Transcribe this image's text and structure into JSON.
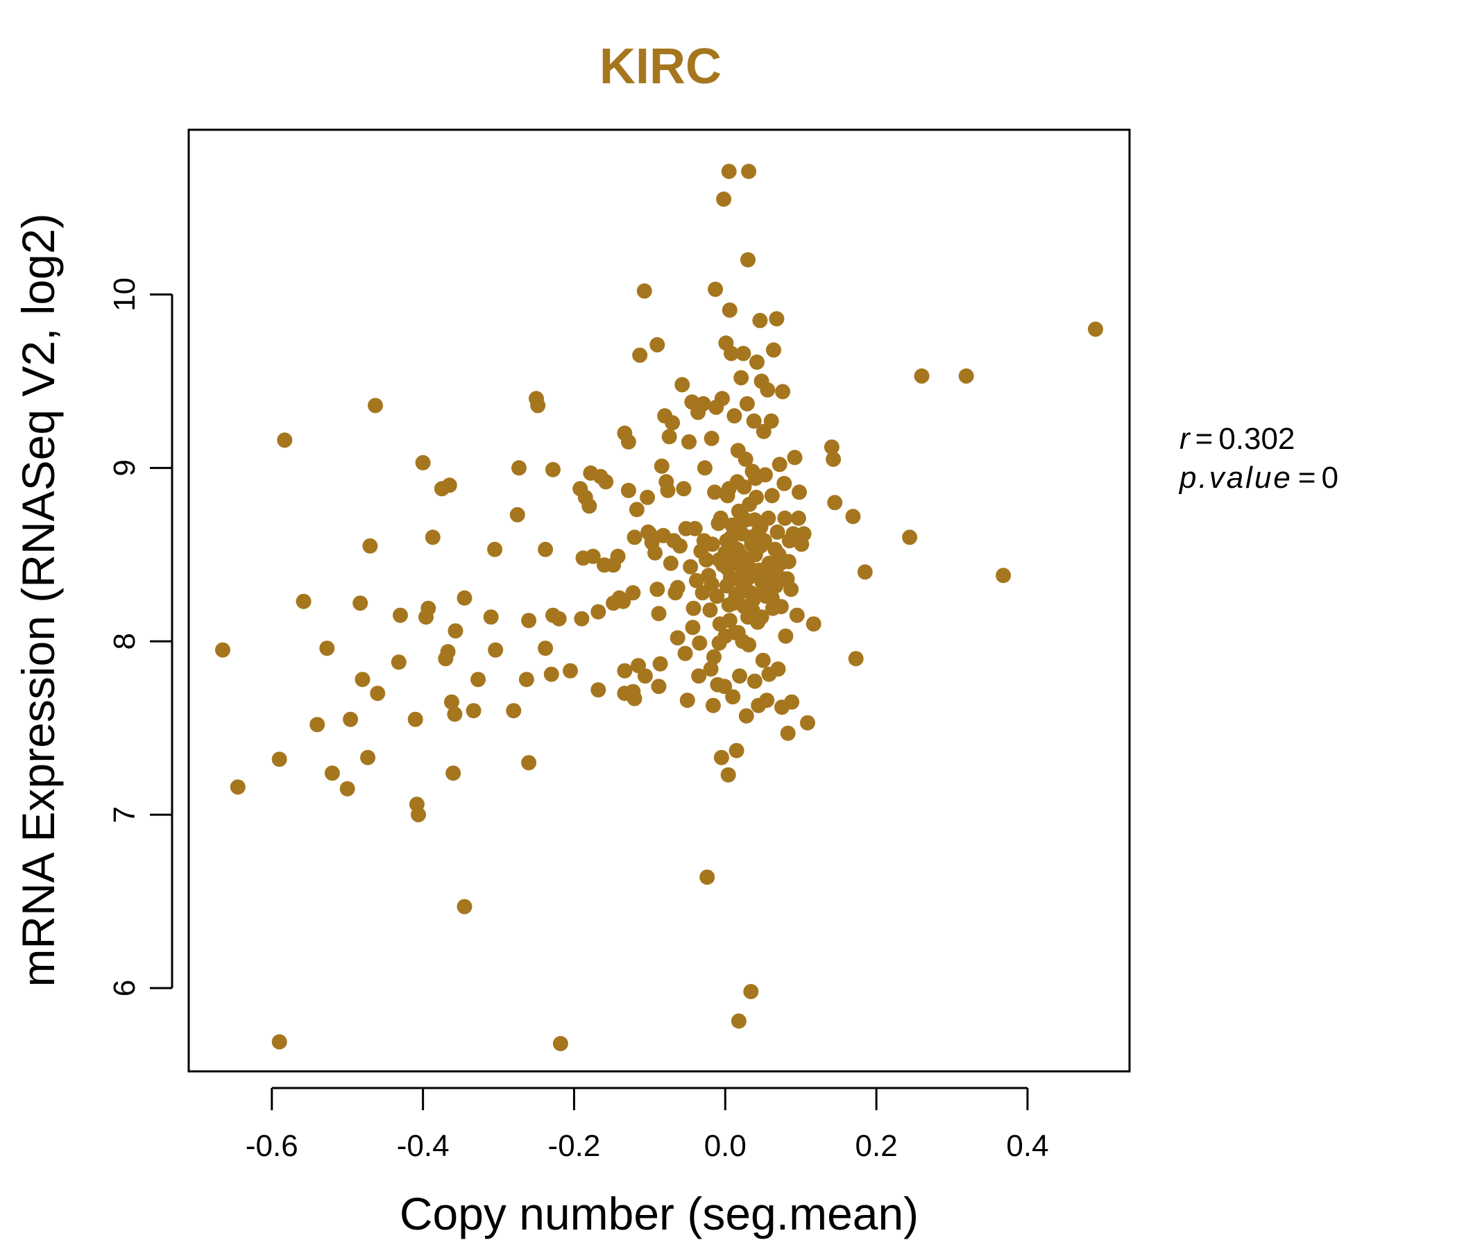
{
  "chart_data": {
    "type": "scatter",
    "title": "KIRC",
    "xlabel": "Copy number (seg.mean)",
    "ylabel": "mRNA Expression (RNASeq V2, log2)",
    "xlim": [
      -0.71,
      0.535
    ],
    "ylim": [
      5.52,
      10.95
    ],
    "x_ticks": [
      -0.6,
      -0.4,
      -0.2,
      0.0,
      0.2,
      0.4
    ],
    "x_tick_labels": [
      "-0.6",
      "-0.4",
      "-0.2",
      "0.0",
      "0.2",
      "0.4"
    ],
    "y_ticks": [
      6,
      7,
      8,
      9,
      10
    ],
    "y_tick_labels": [
      "6",
      "7",
      "8",
      "9",
      "10"
    ],
    "point_color": "#A5761E",
    "title_color": "#A5761E",
    "annotation": {
      "r_label": "r",
      "r_value": "0.302",
      "p_label": "p.value",
      "p_value": "0"
    },
    "series": [
      {
        "points": [
          [
            -0.665,
            7.95
          ],
          [
            -0.645,
            7.16
          ],
          [
            -0.59,
            7.32
          ],
          [
            -0.59,
            5.69
          ],
          [
            -0.583,
            9.16
          ],
          [
            -0.558,
            8.23
          ],
          [
            -0.54,
            7.52
          ],
          [
            -0.527,
            7.96
          ],
          [
            -0.52,
            7.24
          ],
          [
            -0.5,
            7.15
          ],
          [
            -0.496,
            7.55
          ],
          [
            -0.483,
            8.22
          ],
          [
            -0.48,
            7.78
          ],
          [
            -0.473,
            7.33
          ],
          [
            -0.47,
            8.55
          ],
          [
            -0.463,
            9.36
          ],
          [
            -0.46,
            7.7
          ],
          [
            -0.432,
            7.88
          ],
          [
            -0.43,
            8.15
          ],
          [
            -0.41,
            7.55
          ],
          [
            -0.408,
            7.06
          ],
          [
            -0.406,
            7.0
          ],
          [
            -0.4,
            9.03
          ],
          [
            -0.396,
            8.14
          ],
          [
            -0.393,
            8.19
          ],
          [
            -0.387,
            8.6
          ],
          [
            -0.375,
            8.88
          ],
          [
            -0.37,
            7.9
          ],
          [
            -0.367,
            7.94
          ],
          [
            -0.365,
            8.9
          ],
          [
            -0.362,
            7.65
          ],
          [
            -0.36,
            7.24
          ],
          [
            -0.358,
            7.58
          ],
          [
            -0.357,
            8.06
          ],
          [
            -0.345,
            6.47
          ],
          [
            -0.345,
            8.25
          ],
          [
            -0.333,
            7.6
          ],
          [
            -0.327,
            7.78
          ],
          [
            -0.31,
            8.14
          ],
          [
            -0.305,
            8.53
          ],
          [
            -0.304,
            7.95
          ],
          [
            -0.28,
            7.6
          ],
          [
            -0.275,
            8.73
          ],
          [
            -0.273,
            9.0
          ],
          [
            -0.263,
            7.78
          ],
          [
            -0.26,
            7.3
          ],
          [
            -0.26,
            8.12
          ],
          [
            -0.25,
            9.4
          ],
          [
            -0.248,
            9.36
          ],
          [
            -0.238,
            8.53
          ],
          [
            -0.238,
            7.96
          ],
          [
            -0.23,
            7.81
          ],
          [
            -0.228,
            8.99
          ],
          [
            -0.228,
            8.15
          ],
          [
            -0.22,
            8.13
          ],
          [
            -0.218,
            5.68
          ],
          [
            -0.205,
            7.83
          ],
          [
            -0.192,
            8.88
          ],
          [
            -0.19,
            8.13
          ],
          [
            -0.188,
            8.48
          ],
          [
            -0.185,
            8.83
          ],
          [
            -0.18,
            8.78
          ],
          [
            -0.178,
            8.97
          ],
          [
            -0.175,
            8.49
          ],
          [
            -0.168,
            8.17
          ],
          [
            -0.168,
            7.72
          ],
          [
            -0.165,
            8.95
          ],
          [
            -0.16,
            8.44
          ],
          [
            -0.158,
            8.92
          ],
          [
            -0.148,
            8.44
          ],
          [
            -0.148,
            8.22
          ],
          [
            -0.142,
            8.49
          ],
          [
            -0.14,
            8.25
          ],
          [
            -0.135,
            8.23
          ],
          [
            -0.133,
            9.2
          ],
          [
            -0.133,
            7.7
          ],
          [
            -0.133,
            7.83
          ],
          [
            -0.128,
            9.15
          ],
          [
            -0.128,
            8.87
          ],
          [
            -0.122,
            8.28
          ],
          [
            -0.122,
            7.71
          ],
          [
            -0.12,
            7.67
          ],
          [
            -0.12,
            8.6
          ],
          [
            -0.117,
            8.76
          ],
          [
            -0.115,
            7.86
          ],
          [
            -0.113,
            9.65
          ],
          [
            -0.107,
            10.02
          ],
          [
            -0.106,
            7.8
          ],
          [
            -0.103,
            8.83
          ],
          [
            -0.102,
            8.63
          ],
          [
            -0.1,
            8.62
          ],
          [
            -0.097,
            8.57
          ],
          [
            -0.093,
            8.51
          ],
          [
            -0.09,
            9.71
          ],
          [
            -0.09,
            8.3
          ],
          [
            -0.088,
            8.16
          ],
          [
            -0.088,
            7.74
          ],
          [
            -0.086,
            7.87
          ],
          [
            -0.084,
            9.01
          ],
          [
            -0.082,
            8.61
          ],
          [
            -0.08,
            9.3
          ],
          [
            -0.078,
            8.92
          ],
          [
            -0.076,
            8.87
          ],
          [
            -0.074,
            9.18
          ],
          [
            -0.072,
            8.45
          ],
          [
            -0.07,
            9.26
          ],
          [
            -0.068,
            8.58
          ],
          [
            -0.066,
            8.28
          ],
          [
            -0.063,
            8.02
          ],
          [
            -0.063,
            8.31
          ],
          [
            -0.06,
            8.55
          ],
          [
            -0.057,
            9.48
          ],
          [
            -0.055,
            8.88
          ],
          [
            -0.053,
            7.93
          ],
          [
            -0.052,
            8.65
          ],
          [
            -0.05,
            7.66
          ],
          [
            -0.048,
            9.15
          ],
          [
            -0.046,
            8.43
          ],
          [
            -0.044,
            9.38
          ],
          [
            -0.043,
            8.08
          ],
          [
            -0.042,
            8.19
          ],
          [
            -0.04,
            8.65
          ],
          [
            -0.038,
            8.35
          ],
          [
            -0.036,
            9.32
          ],
          [
            -0.035,
            7.8
          ],
          [
            -0.034,
            7.99
          ],
          [
            -0.032,
            8.52
          ],
          [
            -0.03,
            8.28
          ],
          [
            -0.029,
            9.37
          ],
          [
            -0.027,
            9.0
          ],
          [
            -0.025,
            8.47
          ],
          [
            -0.024,
            6.64
          ],
          [
            -0.022,
            8.38
          ],
          [
            -0.02,
            8.18
          ],
          [
            -0.019,
            7.84
          ],
          [
            -0.018,
            9.17
          ],
          [
            -0.017,
            8.56
          ],
          [
            -0.016,
            7.63
          ],
          [
            -0.015,
            7.91
          ],
          [
            -0.014,
            8.86
          ],
          [
            -0.013,
            10.03
          ],
          [
            -0.012,
            9.35
          ],
          [
            -0.011,
            8.26
          ],
          [
            -0.01,
            7.75
          ],
          [
            -0.009,
            8.68
          ],
          [
            -0.008,
            7.99
          ],
          [
            -0.007,
            8.1
          ],
          [
            -0.006,
            8.71
          ],
          [
            -0.005,
            7.33
          ],
          [
            -0.004,
            9.4
          ],
          [
            -0.003,
            8.44
          ],
          [
            -0.002,
            10.55
          ],
          [
            -0.001,
            7.74
          ],
          [
            0.0,
            8.51
          ],
          [
            0.0,
            8.03
          ],
          [
            0.001,
            9.72
          ],
          [
            0.002,
            8.58
          ],
          [
            0.003,
            8.84
          ],
          [
            0.004,
            7.23
          ],
          [
            0.005,
            10.71
          ],
          [
            0.005,
            8.21
          ],
          [
            0.006,
            9.91
          ],
          [
            0.007,
            8.37
          ],
          [
            0.008,
            9.66
          ],
          [
            0.009,
            8.67
          ],
          [
            0.01,
            7.68
          ],
          [
            0.011,
            8.46
          ],
          [
            0.012,
            9.3
          ],
          [
            0.013,
            8.05
          ],
          [
            0.014,
            8.26
          ],
          [
            0.015,
            7.37
          ],
          [
            0.016,
            8.53
          ],
          [
            0.017,
            9.1
          ],
          [
            0.018,
            5.81
          ],
          [
            0.018,
            8.75
          ],
          [
            0.019,
            7.8
          ],
          [
            0.02,
            8.35
          ],
          [
            0.021,
            9.52
          ],
          [
            0.022,
            8.62
          ],
          [
            0.023,
            8.0
          ],
          [
            0.024,
            9.66
          ],
          [
            0.025,
            8.89
          ],
          [
            0.026,
            8.31
          ],
          [
            0.027,
            8.7
          ],
          [
            0.028,
            7.57
          ],
          [
            0.029,
            9.37
          ],
          [
            0.03,
            10.2
          ],
          [
            0.03,
            8.14
          ],
          [
            0.031,
            10.71
          ],
          [
            0.032,
            8.79
          ],
          [
            0.033,
            8.42
          ],
          [
            0.034,
            5.98
          ],
          [
            0.035,
            8.56
          ],
          [
            0.036,
            8.98
          ],
          [
            0.037,
            8.24
          ],
          [
            0.038,
            9.27
          ],
          [
            0.039,
            7.77
          ],
          [
            0.04,
            8.5
          ],
          [
            0.041,
            8.83
          ],
          [
            0.042,
            9.61
          ],
          [
            0.043,
            8.11
          ],
          [
            0.044,
            7.63
          ],
          [
            0.045,
            8.41
          ],
          [
            0.046,
            9.85
          ],
          [
            0.047,
            8.66
          ],
          [
            0.048,
            9.5
          ],
          [
            0.049,
            8.34
          ],
          [
            0.05,
            7.89
          ],
          [
            0.051,
            9.21
          ],
          [
            0.052,
            8.58
          ],
          [
            0.053,
            8.96
          ],
          [
            0.054,
            8.26
          ],
          [
            0.055,
            7.66
          ],
          [
            0.056,
            9.45
          ],
          [
            0.057,
            8.71
          ],
          [
            0.058,
            7.81
          ],
          [
            0.06,
            8.42
          ],
          [
            0.061,
            9.27
          ],
          [
            0.062,
            8.84
          ],
          [
            0.063,
            8.19
          ],
          [
            0.064,
            9.68
          ],
          [
            0.066,
            8.53
          ],
          [
            0.067,
            8.32
          ],
          [
            0.068,
            9.86
          ],
          [
            0.069,
            8.63
          ],
          [
            0.07,
            7.84
          ],
          [
            0.072,
            9.02
          ],
          [
            0.073,
            8.45
          ],
          [
            0.074,
            8.2
          ],
          [
            0.075,
            7.62
          ],
          [
            0.076,
            9.44
          ],
          [
            0.078,
            8.91
          ],
          [
            0.079,
            8.71
          ],
          [
            0.08,
            8.03
          ],
          [
            0.082,
            8.36
          ],
          [
            0.083,
            7.47
          ],
          [
            0.085,
            8.58
          ],
          [
            0.087,
            8.3
          ],
          [
            0.088,
            7.65
          ],
          [
            0.09,
            8.62
          ],
          [
            0.092,
            9.06
          ],
          [
            0.095,
            8.15
          ],
          [
            0.097,
            8.71
          ],
          [
            0.098,
            8.86
          ],
          [
            0.101,
            8.56
          ],
          [
            0.104,
            8.62
          ],
          [
            0.109,
            7.53
          ],
          [
            0.117,
            8.1
          ],
          [
            0.141,
            9.12
          ],
          [
            0.143,
            9.05
          ],
          [
            0.145,
            8.8
          ],
          [
            0.169,
            8.72
          ],
          [
            0.173,
            7.9
          ],
          [
            0.185,
            8.4
          ],
          [
            0.244,
            8.6
          ],
          [
            0.26,
            9.53
          ],
          [
            0.319,
            9.53
          ],
          [
            0.368,
            8.38
          ],
          [
            0.49,
            9.8
          ],
          [
            0.002,
            8.32
          ],
          [
            0.008,
            8.6
          ],
          [
            0.011,
            8.22
          ],
          [
            0.014,
            8.45
          ],
          [
            0.019,
            8.28
          ],
          [
            0.021,
            8.73
          ],
          [
            0.026,
            8.48
          ],
          [
            0.029,
            8.36
          ],
          [
            0.033,
            8.6
          ],
          [
            0.036,
            8.18
          ],
          [
            0.039,
            8.7
          ],
          [
            0.044,
            8.37
          ],
          [
            0.047,
            8.55
          ],
          [
            0.052,
            8.29
          ],
          [
            0.058,
            8.45
          ],
          [
            0.062,
            8.25
          ],
          [
            0.067,
            8.4
          ],
          [
            0.071,
            8.5
          ],
          [
            0.077,
            8.36
          ],
          [
            0.084,
            8.46
          ],
          [
            0.005,
            8.88
          ],
          [
            0.016,
            8.92
          ],
          [
            0.027,
            9.05
          ],
          [
            0.04,
            8.94
          ],
          [
            0.006,
            8.12
          ],
          [
            0.017,
            8.05
          ],
          [
            0.031,
            7.98
          ],
          [
            0.048,
            8.14
          ],
          [
            -0.008,
            8.47
          ],
          [
            -0.018,
            8.33
          ],
          [
            -0.028,
            8.58
          ],
          [
            0.012,
            8.54
          ],
          [
            0.024,
            8.41
          ],
          [
            0.034,
            8.28
          ],
          [
            0.044,
            8.63
          ],
          [
            0.055,
            8.38
          ],
          [
            0.015,
            8.66
          ],
          [
            0.025,
            8.2
          ],
          [
            0.003,
            8.42
          ],
          [
            0.02,
            8.5
          ]
        ]
      }
    ]
  }
}
